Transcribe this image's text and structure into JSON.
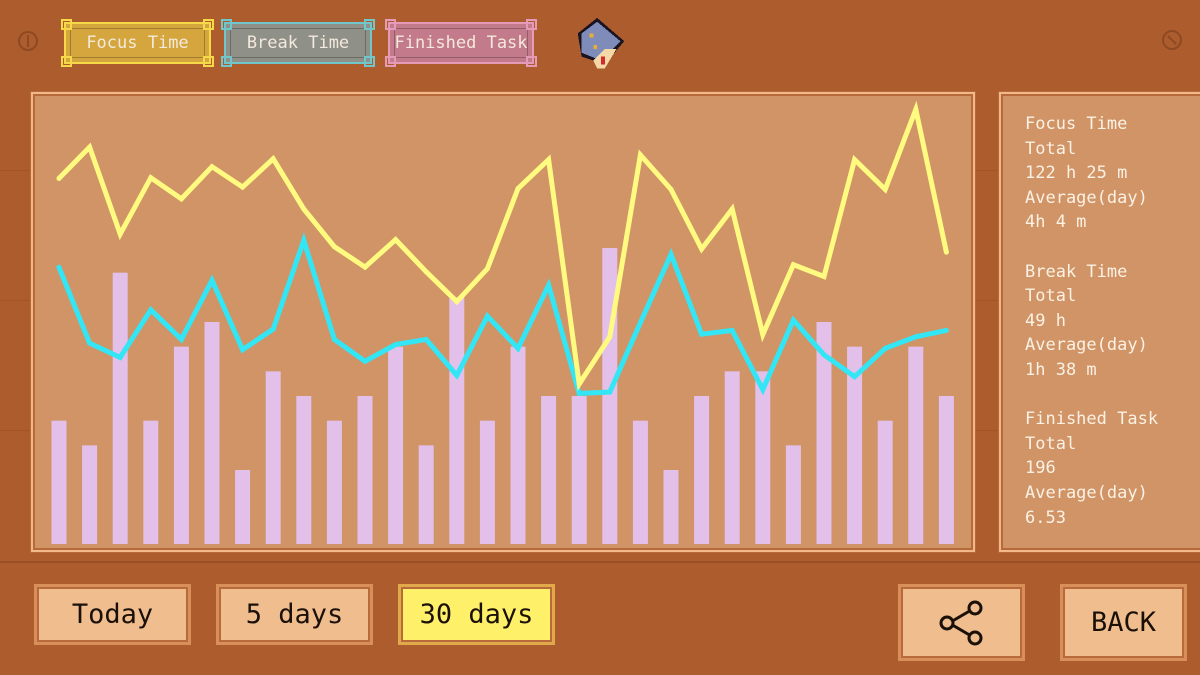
{
  "legend": {
    "focus_label": "Focus Time",
    "break_label": "Break Time",
    "task_label": "Finished Task",
    "focus_color": "#d7a83a",
    "break_color": "#8e8f86",
    "task_color": "#c27a8a"
  },
  "icons": {
    "left_screw": "screw-icon",
    "right_screw": "screw-icon",
    "book": "book-icon",
    "share": "share-icon"
  },
  "stats": {
    "focus": {
      "title": "Focus Time",
      "total_label": "Total",
      "total": "122 h 25 m",
      "avg_label": "Average(day)",
      "avg": "4h 4 m"
    },
    "break": {
      "title": "Break Time",
      "total_label": "Total",
      "total": "49 h",
      "avg_label": "Average(day)",
      "avg": "1h 38 m"
    },
    "tasks": {
      "title": "Finished Task",
      "total_label": "Total",
      "total": "196",
      "avg_label": "Average(day)",
      "avg": "6.53"
    }
  },
  "range_buttons": [
    {
      "label": "Today",
      "active": false
    },
    {
      "label": "5 days",
      "active": false
    },
    {
      "label": "30 days",
      "active": true
    }
  ],
  "back_label": "BACK",
  "chart_data": {
    "type": "bar+line",
    "days": 30,
    "grid": false,
    "colors": {
      "focus": "#fffb80",
      "break": "#33e6f5",
      "tasks": "#e2c0ea"
    },
    "series": [
      {
        "key": "focus",
        "kind": "line",
        "unit": "h",
        "ylim": [
          0,
          5.66
        ],
        "values": [
          4.66,
          5.06,
          3.95,
          4.67,
          4.4,
          4.81,
          4.55,
          4.91,
          4.27,
          3.79,
          3.53,
          3.88,
          3.47,
          3.09,
          3.51,
          4.53,
          4.9,
          2.04,
          2.64,
          4.96,
          4.52,
          3.76,
          4.27,
          2.67,
          3.56,
          3.41,
          4.9,
          4.52,
          5.54,
          3.72
        ]
      },
      {
        "key": "break",
        "kind": "line",
        "unit": "h",
        "ylim": [
          0,
          3.45
        ],
        "values": [
          2.15,
          1.56,
          1.45,
          1.82,
          1.59,
          2.05,
          1.51,
          1.67,
          2.36,
          1.59,
          1.42,
          1.55,
          1.59,
          1.31,
          1.77,
          1.52,
          2.01,
          1.17,
          1.18,
          1.72,
          2.25,
          1.63,
          1.66,
          1.2,
          1.74,
          1.47,
          1.3,
          1.52,
          1.61,
          1.66
        ]
      },
      {
        "key": "tasks",
        "kind": "bar",
        "ylim": [
          0,
          18
        ],
        "values": [
          5,
          4,
          11,
          5,
          8,
          9,
          3,
          7,
          6,
          5,
          6,
          8,
          4,
          10,
          5,
          8,
          6,
          6,
          12,
          5,
          3,
          6,
          7,
          7,
          4,
          9,
          8,
          5,
          8,
          6
        ]
      }
    ]
  }
}
